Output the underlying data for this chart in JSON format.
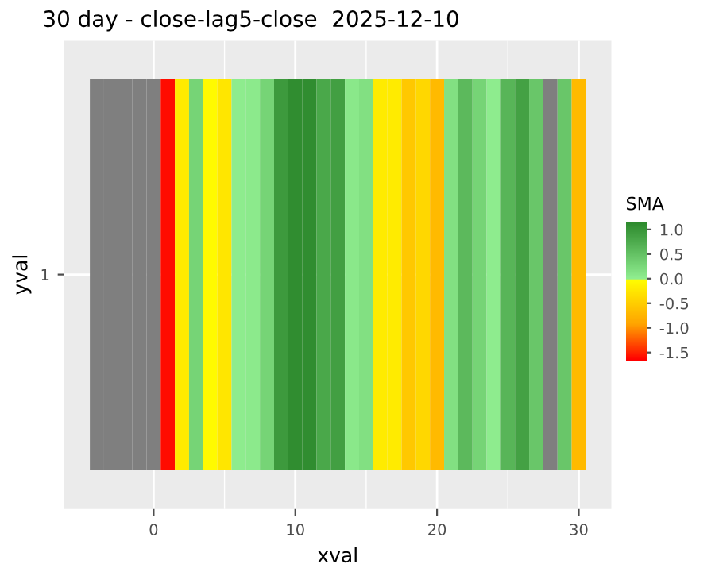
{
  "chart_data": {
    "type": "heatmap",
    "title": "30 day - close-lag5-close  2025-12-10",
    "xlabel": "xval",
    "ylabel": "yval",
    "clabel": "SMA",
    "x": [
      -4,
      -3,
      -2,
      -1,
      0,
      1,
      2,
      3,
      4,
      5,
      6,
      7,
      8,
      9,
      10,
      11,
      12,
      13,
      14,
      15,
      16,
      17,
      18,
      19,
      20,
      21,
      22,
      23,
      24,
      25,
      26,
      27,
      28,
      29,
      30
    ],
    "y_categories": [
      "1"
    ],
    "cells": [
      [
        null,
        null,
        null,
        null,
        null,
        -1.6,
        -0.2,
        0.3,
        -0.05,
        -0.25,
        0.02,
        0.05,
        0.3,
        0.95,
        1.1,
        1.1,
        0.8,
        0.9,
        0.07,
        0.15,
        -0.2,
        -0.2,
        -0.55,
        -0.4,
        -0.7,
        0.15,
        0.6,
        0.3,
        0.02,
        0.65,
        0.87,
        0.45,
        null,
        0.45,
        -0.7
      ]
    ],
    "clim": [
      -1.66,
      1.13
    ],
    "cticks": [
      {
        "value": 1,
        "label": "1.0"
      },
      0.5,
      {
        "value": 0,
        "label": "0.0"
      },
      -0.5,
      {
        "value": -1,
        "label": "-1.0"
      },
      -1.5
    ],
    "xlim": [
      -6.3,
      32.3
    ],
    "xticks": [
      0,
      10,
      20,
      30
    ],
    "grid": true
  }
}
